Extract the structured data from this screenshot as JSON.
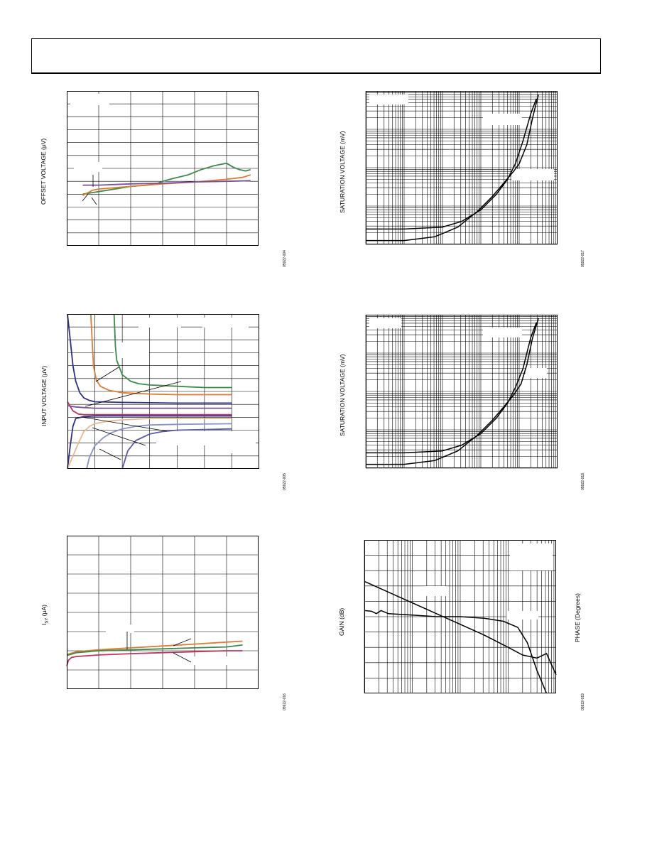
{
  "figures": [
    {
      "id": "fig-offset",
      "ylabel": "OFFSET VOLTAGE (μV)",
      "fig_id": "05922-004",
      "chart_data": {
        "type": "line",
        "title": "",
        "xlabel": "",
        "ylabel": "OFFSET VOLTAGE (μV)",
        "xlim": [
          0,
          6
        ],
        "ylim": [
          0,
          12
        ],
        "grid": true,
        "series": [
          {
            "color": "#3a8a4a",
            "x": [
              0.5,
              1.0,
              1.5,
              2.0,
              2.5,
              2.8,
              3.0,
              3.3,
              3.8,
              4.2,
              4.6,
              4.8,
              5.0,
              5.2,
              5.4,
              5.6,
              5.75
            ],
            "y": [
              4.0,
              4.2,
              4.4,
              4.6,
              4.7,
              4.8,
              5.0,
              5.2,
              5.5,
              5.9,
              6.2,
              6.3,
              6.4,
              6.1,
              5.9,
              5.8,
              5.9
            ]
          },
          {
            "color": "#e07a2e",
            "x": [
              0.5,
              0.8,
              1.0,
              2.0,
              3.0,
              4.0,
              5.0,
              5.5,
              5.75
            ],
            "y": [
              3.9,
              4.3,
              4.4,
              4.6,
              4.8,
              4.95,
              5.15,
              5.3,
              5.5
            ]
          },
          {
            "color": "#7b4fa0",
            "x": [
              0.5,
              1.0,
              2.0,
              3.0,
              4.0,
              5.0,
              5.75
            ],
            "y": [
              4.7,
              4.7,
              4.8,
              4.85,
              4.95,
              5.0,
              5.05
            ]
          }
        ]
      }
    },
    {
      "id": "fig-input",
      "ylabel": "INPUT VOLTAGE (μV)",
      "fig_id": "05922-005",
      "chart_data": {
        "type": "line",
        "title": "",
        "xlabel": "",
        "ylabel": "INPUT VOLTAGE (μV)",
        "xlim": [
          0,
          7
        ],
        "ylim": [
          0,
          12
        ],
        "grid": true,
        "series": [
          {
            "color": "#3a8a4a",
            "x": [
              1.7,
              1.75,
              1.8,
              2.0,
              2.3,
              2.6,
              3.0,
              4.0,
              5.0,
              6.0
            ],
            "y": [
              12,
              9.5,
              8.4,
              7.3,
              6.8,
              6.6,
              6.5,
              6.4,
              6.3,
              6.3
            ]
          },
          {
            "color": "#e07a2e",
            "x": [
              0.85,
              0.9,
              0.95,
              1.05,
              1.2,
              1.5,
              2.0,
              3.0,
              4.0,
              6.0
            ],
            "y": [
              12,
              10.0,
              8.0,
              6.9,
              6.4,
              6.1,
              5.9,
              5.8,
              5.75,
              5.75
            ]
          },
          {
            "color": "#2e2f8c",
            "x": [
              0.0,
              0.1,
              0.2,
              0.3,
              0.45,
              0.6,
              0.8,
              1.0,
              2.0,
              4.0,
              6.0
            ],
            "y": [
              12,
              10.0,
              8.0,
              6.8,
              5.9,
              5.5,
              5.3,
              5.2,
              5.15,
              5.1,
              5.1
            ]
          },
          {
            "color": "#7b4fa0",
            "x": [
              0.0,
              0.3,
              0.6,
              1.0,
              2.0,
              4.0,
              6.0
            ],
            "y": [
              4.9,
              4.8,
              4.75,
              4.7,
              4.7,
              4.7,
              4.7
            ]
          },
          {
            "color": "#c0345a",
            "x": [
              0.0,
              0.2,
              0.4,
              0.6,
              1.0,
              2.0,
              4.0,
              6.0
            ],
            "y": [
              5.2,
              4.5,
              4.25,
              4.2,
              4.2,
              4.2,
              4.2,
              4.2
            ]
          },
          {
            "color": "#2e2f8c",
            "x": [
              0.0,
              0.1,
              0.2,
              0.3,
              0.6,
              1.0,
              2.0,
              4.0,
              6.0
            ],
            "y": [
              0,
              1.8,
              3.3,
              3.9,
              4.05,
              4.1,
              4.1,
              4.1,
              4.1
            ]
          },
          {
            "color": "#8a8fd0",
            "x": [
              0.7,
              0.8,
              1.0,
              1.3,
              1.6,
              2.0,
              2.5,
              3.0,
              4.0,
              6.0
            ],
            "y": [
              0,
              0.9,
              1.8,
              2.4,
              2.8,
              3.1,
              3.3,
              3.4,
              3.45,
              3.5
            ]
          },
          {
            "color": "#e9b890",
            "x": [
              0.0,
              0.2,
              0.4,
              0.6,
              0.8,
              1.0,
              1.5,
              2.0,
              3.0,
              4.0,
              6.0
            ],
            "y": [
              0,
              1.0,
              2.0,
              2.9,
              3.3,
              3.5,
              3.7,
              3.8,
              3.9,
              3.9,
              3.9
            ]
          },
          {
            "color": "#5a5aa8",
            "x": [
              2.0,
              2.2,
              2.5,
              3.0,
              3.5,
              4.0,
              5.0,
              6.0
            ],
            "y": [
              0,
              1.4,
              2.2,
              2.7,
              2.9,
              3.0,
              3.05,
              3.1
            ]
          }
        ]
      }
    },
    {
      "id": "fig-isy",
      "ylabel_main": "I",
      "ylabel_sub": "SY",
      "ylabel_unit": " (μA)",
      "fig_id": "05922-016",
      "chart_data": {
        "type": "line",
        "title": "",
        "xlabel": "",
        "ylabel": "ISY (μA)",
        "xlim": [
          0,
          6
        ],
        "ylim": [
          0,
          8
        ],
        "grid": true,
        "series": [
          {
            "color": "#e07a2e",
            "x": [
              0,
              0.3,
              1,
              2,
              3,
              4,
              5,
              5.5
            ],
            "y": [
              1.8,
              1.95,
              2.05,
              2.15,
              2.25,
              2.35,
              2.45,
              2.5
            ]
          },
          {
            "color": "#3a8a4a",
            "x": [
              0,
              0.3,
              1,
              2,
              3,
              4,
              5,
              5.5
            ],
            "y": [
              1.75,
              1.9,
              2.0,
              2.05,
              2.1,
              2.15,
              2.2,
              2.3
            ]
          },
          {
            "color": "#c0345a",
            "x": [
              0,
              0.05,
              0.15,
              0.3,
              1,
              2,
              3,
              4,
              5,
              5.5
            ],
            "y": [
              1.2,
              1.5,
              1.65,
              1.7,
              1.78,
              1.85,
              1.9,
              1.95,
              2.0,
              2.0
            ]
          }
        ]
      }
    },
    {
      "id": "fig-sat1",
      "ylabel": "SATURATION VOLTAGE (mV)",
      "fig_id": "05922-017",
      "chart_data": {
        "type": "line",
        "title": "",
        "xlabel": "",
        "ylabel": "SATURATION VOLTAGE (mV)",
        "log_x": true,
        "log_y": true,
        "x_decades": 5,
        "y_decades": 4,
        "xlim": [
          0,
          5
        ],
        "ylim": [
          0,
          4
        ],
        "grid": true,
        "series": [
          {
            "color": "#000000",
            "x": [
              0,
              1.0,
              2.0,
              2.5,
              3.0,
              3.4,
              3.7,
              3.9,
              4.1,
              4.3,
              4.45
            ],
            "y": [
              0.4,
              0.4,
              0.45,
              0.6,
              0.9,
              1.3,
              1.7,
              2.1,
              2.7,
              3.4,
              3.8
            ]
          },
          {
            "color": "#000000",
            "x": [
              0,
              1.0,
              1.8,
              2.4,
              2.9,
              3.3,
              3.6,
              3.85,
              4.0,
              4.2,
              4.35,
              4.5
            ],
            "y": [
              0.1,
              0.1,
              0.2,
              0.45,
              0.85,
              1.25,
              1.6,
              1.9,
              2.1,
              2.6,
              3.3,
              3.9
            ]
          }
        ]
      }
    },
    {
      "id": "fig-sat2",
      "ylabel": "SATURATION VOLTAGE (mV)",
      "fig_id": "05922-018",
      "chart_data": {
        "type": "line",
        "title": "",
        "xlabel": "",
        "ylabel": "SATURATION VOLTAGE (mV)",
        "log_x": true,
        "log_y": true,
        "x_decades": 5,
        "y_decades": 4,
        "xlim": [
          0,
          5
        ],
        "ylim": [
          0,
          4
        ],
        "grid": true,
        "series": [
          {
            "color": "#000000",
            "x": [
              0,
              1.0,
              2.0,
              2.5,
              3.0,
              3.4,
              3.7,
              3.9,
              4.1,
              4.3,
              4.45
            ],
            "y": [
              0.4,
              0.4,
              0.45,
              0.6,
              0.9,
              1.3,
              1.7,
              2.1,
              2.6,
              3.4,
              3.8
            ]
          },
          {
            "color": "#000000",
            "x": [
              0,
              1.0,
              1.8,
              2.4,
              2.9,
              3.3,
              3.6,
              3.85,
              4.05,
              4.2,
              4.35,
              4.5
            ],
            "y": [
              0.1,
              0.1,
              0.2,
              0.45,
              0.85,
              1.25,
              1.6,
              1.9,
              2.2,
              2.7,
              3.4,
              3.9
            ]
          }
        ]
      }
    },
    {
      "id": "fig-gain",
      "ylabel": "GAIN (dB)",
      "ylabel_right": "PHASE (Degrees)",
      "fig_id": "05922-019",
      "chart_data": {
        "type": "line",
        "title": "",
        "xlabel": "",
        "ylabel": "GAIN (dB)",
        "y2label": "PHASE (Degrees)",
        "log_x": true,
        "x_decades": 4,
        "xlim": [
          0,
          4
        ],
        "ylim": [
          0,
          10
        ],
        "grid": true,
        "series": [
          {
            "color": "#000000",
            "x": [
              0,
              0.5,
              1,
              1.5,
              2,
              2.5,
              3.0,
              3.3,
              3.6,
              3.8,
              4.0
            ],
            "y": [
              7.3,
              6.6,
              5.9,
              5.2,
              4.5,
              3.8,
              3.0,
              2.5,
              2.3,
              2.6,
              1.2
            ]
          },
          {
            "color": "#000000",
            "x": [
              0,
              0.15,
              0.25,
              0.35,
              0.5,
              1,
              1.5,
              2,
              2.5,
              2.9,
              3.2,
              3.4,
              3.6,
              3.8
            ],
            "y": [
              5.4,
              5.35,
              5.2,
              5.4,
              5.2,
              5.1,
              5.0,
              5.0,
              4.9,
              4.7,
              4.3,
              3.3,
              1.5,
              0
            ]
          }
        ]
      }
    }
  ]
}
